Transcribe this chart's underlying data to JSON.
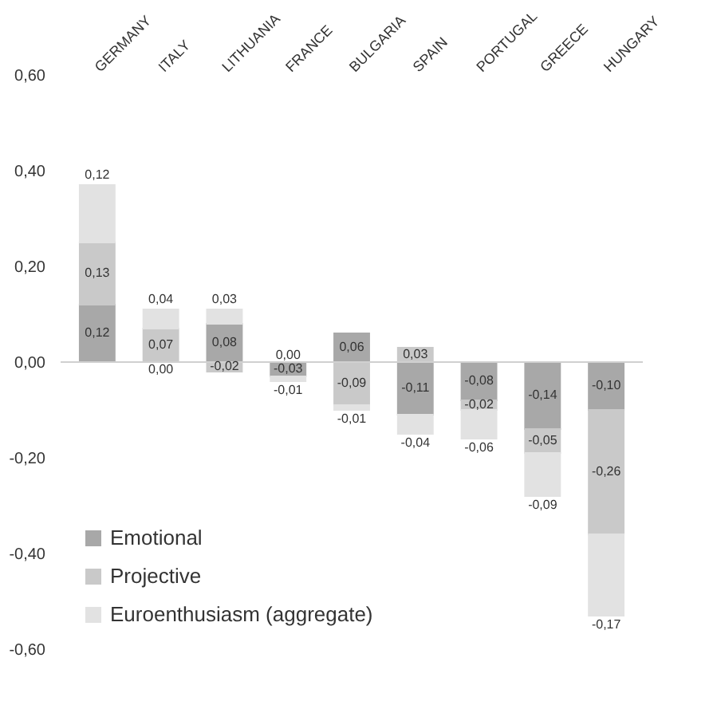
{
  "chart_data": {
    "type": "bar",
    "stacked": true,
    "categories": [
      "GERMANY",
      "ITALY",
      "LITHUANIA",
      "FRANCE",
      "BULGARIA",
      "SPAIN",
      "PORTUGAL",
      "GREECE",
      "HUNGARY"
    ],
    "series": [
      {
        "name": "Emotional",
        "color": "#a8a8a8",
        "values": [
          0.12,
          0.0,
          0.08,
          -0.03,
          0.06,
          -0.11,
          -0.08,
          -0.14,
          -0.1
        ],
        "value_labels": [
          "0,12",
          "0,00",
          "0,08",
          "-0,03",
          "0,06",
          "-0,11",
          "-0,08",
          "-0,14",
          "-0,10"
        ]
      },
      {
        "name": "Projective",
        "color": "#c9c9c9",
        "values": [
          0.13,
          0.07,
          -0.02,
          0.0,
          -0.09,
          0.03,
          -0.02,
          -0.05,
          -0.26
        ],
        "value_labels": [
          "0,13",
          "0,07",
          "-0,02",
          "0,00",
          "-0,09",
          "0,03",
          "-0,02",
          "-0,05",
          "-0,26"
        ]
      },
      {
        "name": "Euroenthusiasm (aggregate)",
        "color": "#e2e2e2",
        "values": [
          0.12,
          0.04,
          0.03,
          -0.01,
          -0.01,
          -0.04,
          -0.06,
          -0.09,
          -0.17
        ],
        "value_labels": [
          "0,12",
          "0,04",
          "0,03",
          "-0,01",
          "-0,01",
          "-0,04",
          "-0,06",
          "-0,09",
          "-0,17"
        ]
      }
    ],
    "ylim": [
      -0.6,
      0.6
    ],
    "yticks": [
      {
        "value": -0.6,
        "label": "-0,60"
      },
      {
        "value": -0.4,
        "label": "-0,40"
      },
      {
        "value": -0.2,
        "label": "-0,20"
      },
      {
        "value": 0,
        "label": "0,00"
      },
      {
        "value": 0.2,
        "label": "0,20"
      },
      {
        "value": 0.4,
        "label": "0,40"
      },
      {
        "value": 0.6,
        "label": "0,60"
      }
    ],
    "grid": false,
    "legend": "bottom left",
    "ref_lines": [
      {
        "axis": "y",
        "value": 0,
        "color": "#d0d0d0"
      }
    ]
  }
}
